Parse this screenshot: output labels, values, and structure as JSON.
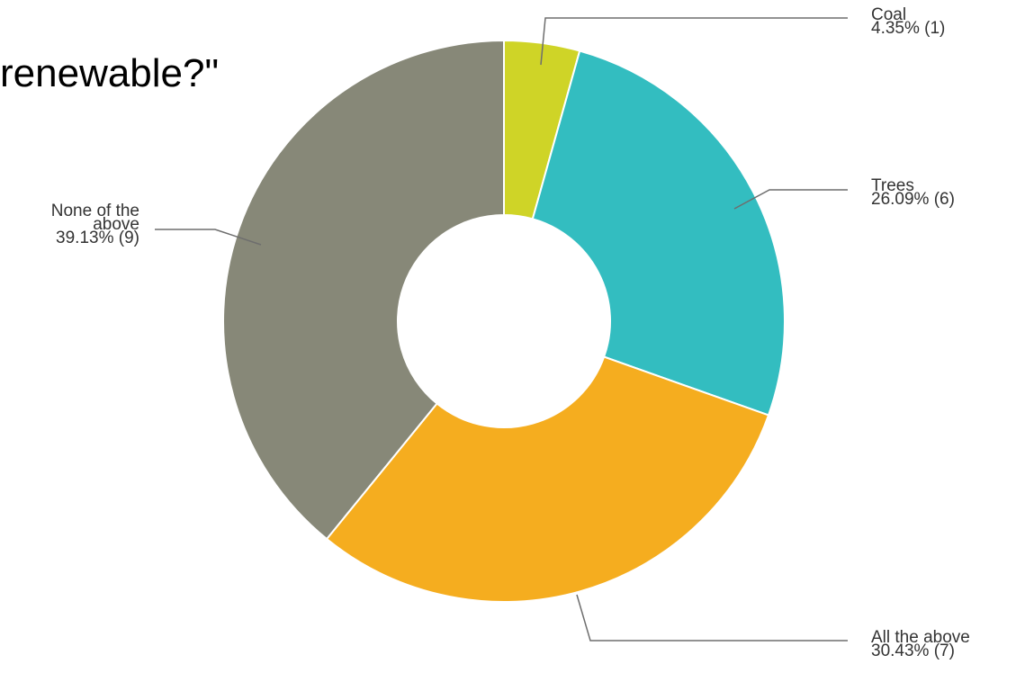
{
  "page": {
    "title_fragment": "renewable?\""
  },
  "chart_data": {
    "type": "pie",
    "donut": true,
    "categories": [
      "Coal",
      "Trees",
      "All the above",
      "None of the above"
    ],
    "values": [
      1,
      6,
      7,
      9
    ],
    "percentages": [
      "4.35%",
      "26.09%",
      "30.43%",
      "39.13%"
    ],
    "colors": [
      "#cfd427",
      "#33bdc0",
      "#f5ad1f",
      "#878878"
    ],
    "label_lines": [
      [
        "Coal",
        "4.35% (1)"
      ],
      [
        "Trees",
        "26.09% (6)"
      ],
      [
        "All the above",
        "30.43% (7)"
      ],
      [
        "None of the",
        "above",
        "39.13% (9)"
      ]
    ],
    "label_side": [
      "right",
      "right",
      "right",
      "left"
    ],
    "start_angle_deg": 0,
    "direction": "clockwise"
  }
}
